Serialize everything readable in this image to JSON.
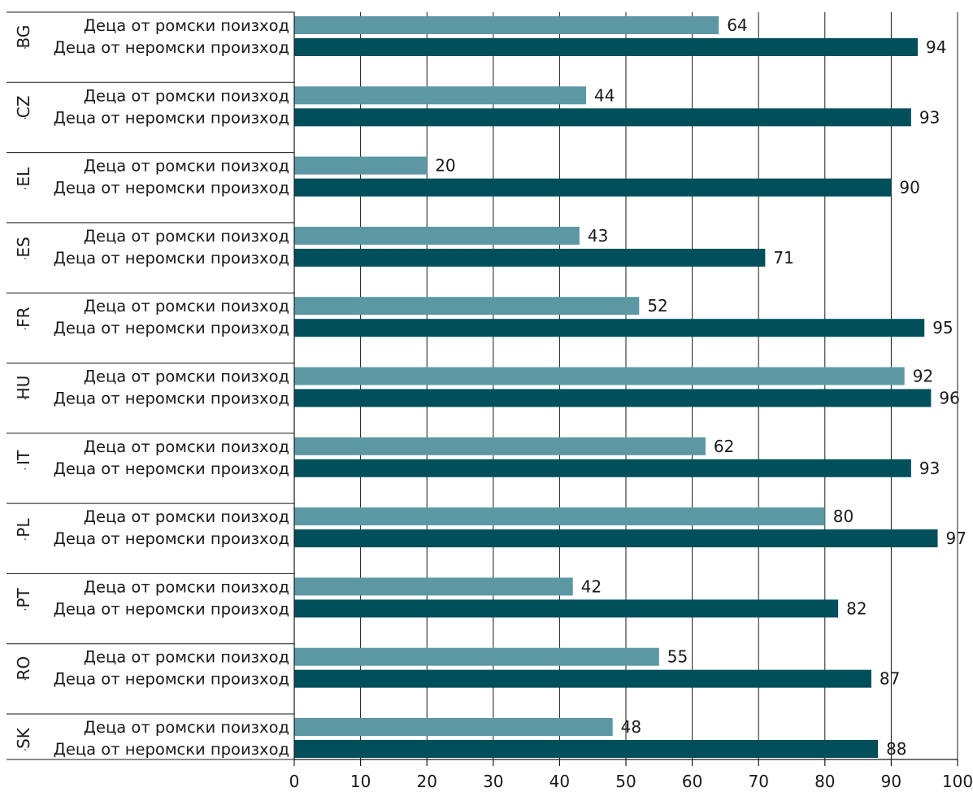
{
  "chart_data": {
    "type": "bar",
    "orientation": "horizontal",
    "xlim": [
      0,
      100
    ],
    "xticks": [
      0,
      10,
      20,
      30,
      40,
      50,
      60,
      70,
      80,
      90,
      100
    ],
    "grid": true,
    "colors": {
      "roma": "#5b98a3",
      "non_roma": "#004f5a"
    },
    "bar_labels": {
      "roma": "Деца от ромски поизход",
      "non_roma": "Деца от неромски произход"
    },
    "groups": [
      {
        "country": "BG",
        "roma": 64,
        "non_roma": 94
      },
      {
        "country": "CZ",
        "roma": 44,
        "non_roma": 93
      },
      {
        "country": "EL",
        "roma": 20,
        "non_roma": 90
      },
      {
        "country": "ES",
        "roma": 43,
        "non_roma": 71
      },
      {
        "country": "FR",
        "roma": 52,
        "non_roma": 95
      },
      {
        "country": "HU",
        "roma": 92,
        "non_roma": 96
      },
      {
        "country": "IT",
        "roma": 62,
        "non_roma": 93
      },
      {
        "country": "PL",
        "roma": 80,
        "non_roma": 97
      },
      {
        "country": "PT",
        "roma": 42,
        "non_roma": 82
      },
      {
        "country": "RO",
        "roma": 55,
        "non_roma": 87
      },
      {
        "country": "SK",
        "roma": 48,
        "non_roma": 88
      }
    ]
  }
}
